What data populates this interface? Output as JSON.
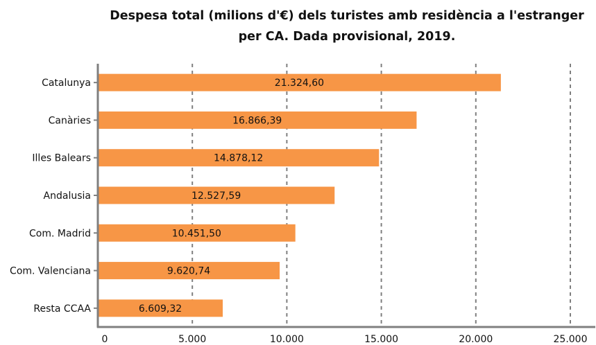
{
  "chart_data": {
    "type": "bar",
    "orientation": "horizontal",
    "title_line1": "Despesa total (milions d'€) dels turistes amb residència a l'estranger",
    "title_line2": "per CA. Dada provisional, 2019.",
    "categories": [
      "Catalunya",
      "Canàries",
      "Illes Balears",
      "Andalusia",
      "Com. Madrid",
      "Com. Valenciana",
      "Resta CCAA"
    ],
    "values": [
      21324.6,
      16866.39,
      14878.12,
      12527.59,
      10451.5,
      9620.74,
      6609.32
    ],
    "value_labels": [
      "21.324,60",
      "16.866,39",
      "14.878,12",
      "12.527,59",
      "10.451,50",
      "9.620,74",
      "6.609,32"
    ],
    "xlim": [
      0,
      25000
    ],
    "x_ticks": [
      0,
      5000,
      10000,
      15000,
      20000,
      25000
    ],
    "x_tick_labels": [
      "0",
      "5.000",
      "10.000",
      "15.000",
      "20.000",
      "25.000"
    ],
    "grid": "vertical dashed",
    "bar_color": "#f79646",
    "xlabel": "",
    "ylabel": ""
  }
}
